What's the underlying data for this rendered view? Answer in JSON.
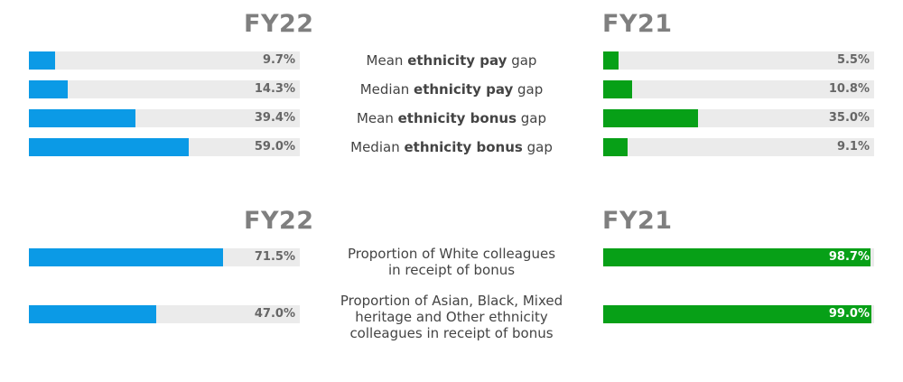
{
  "chart_data": [
    {
      "type": "bar",
      "orientation": "horizontal",
      "section": "top",
      "categories": [
        "Mean ethnicity pay gap",
        "Median ethnicity pay gap",
        "Mean ethnicity bonus gap",
        "Median ethnicity bonus gap"
      ],
      "category_parts": [
        [
          "Mean ",
          "ethnicity pay",
          " gap"
        ],
        [
          "Median ",
          "ethnicity pay",
          " gap"
        ],
        [
          "Mean ",
          "ethnicity bonus",
          " gap"
        ],
        [
          "Median ",
          "ethnicity bonus",
          " gap"
        ]
      ],
      "series": [
        {
          "name": "FY22",
          "values": [
            9.7,
            14.3,
            39.4,
            59.0
          ],
          "labels": [
            "9.7%",
            "14.3%",
            "39.4%",
            "59.0%"
          ],
          "color": "#0b9ae6"
        },
        {
          "name": "FY21",
          "values": [
            5.5,
            10.8,
            35.0,
            9.1
          ],
          "labels": [
            "5.5%",
            "10.8%",
            "35.0%",
            "9.1%"
          ],
          "color": "#07a017"
        }
      ],
      "xlim": [
        0,
        100
      ]
    },
    {
      "type": "bar",
      "orientation": "horizontal",
      "section": "bottom",
      "categories": [
        "Proportion of White colleagues in receipt of bonus",
        "Proportion of Asian, Black, Mixed heritage and Other ethnicity colleagues in receipt of bonus"
      ],
      "category_lines": [
        [
          "Proportion of White colleagues",
          "in receipt of bonus"
        ],
        [
          "Proportion of Asian, Black, Mixed",
          "heritage and Other ethnicity",
          "colleagues in receipt of bonus"
        ]
      ],
      "series": [
        {
          "name": "FY22",
          "values": [
            71.5,
            47.0
          ],
          "labels": [
            "71.5%",
            "47.0%"
          ],
          "color": "#0b9ae6"
        },
        {
          "name": "FY21",
          "values": [
            98.7,
            99.0
          ],
          "labels": [
            "98.7%",
            "99.0%"
          ],
          "color": "#07a017"
        }
      ],
      "xlim": [
        0,
        100
      ]
    }
  ]
}
